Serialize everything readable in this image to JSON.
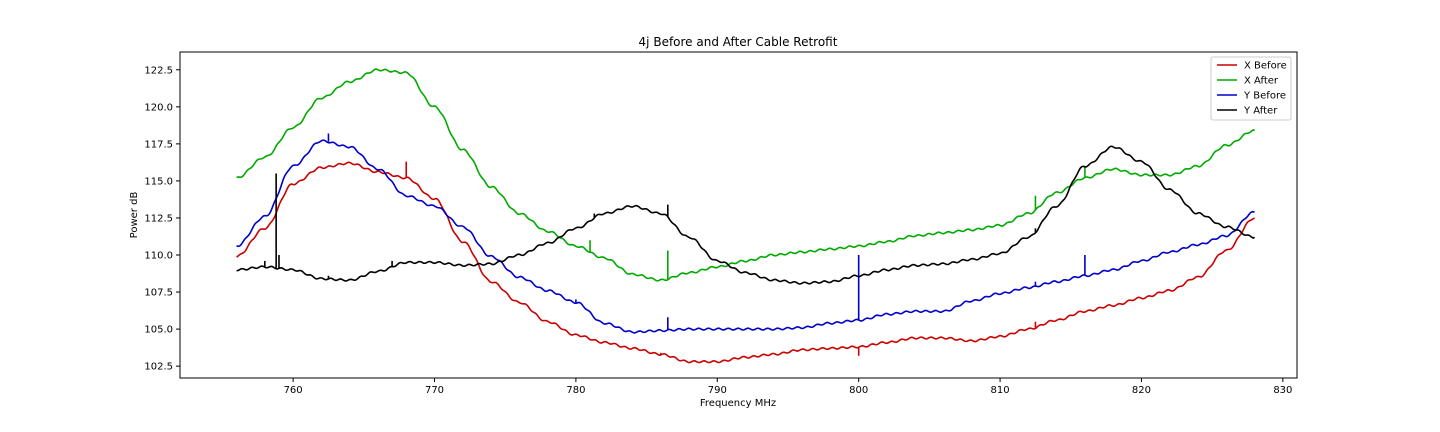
{
  "chart_data": {
    "type": "line",
    "title": "4j Before and After Cable Retrofit",
    "xlabel": "Frequency MHz",
    "ylabel": "Power dB",
    "xlim": [
      752,
      831
    ],
    "ylim": [
      101.7,
      123.7
    ],
    "xticks": [
      760,
      770,
      780,
      790,
      800,
      810,
      820,
      830
    ],
    "yticks": [
      102.5,
      105.0,
      107.5,
      110.0,
      112.5,
      115.0,
      117.5,
      120.0,
      122.5
    ],
    "ytick_labels": [
      "102.5",
      "105.0",
      "107.5",
      "110.0",
      "112.5",
      "115.0",
      "117.5",
      "120.0",
      "122.5"
    ],
    "grid": false,
    "legend_position": "upper right",
    "series": [
      {
        "name": "X Before",
        "color": "#cc0000",
        "points": [
          [
            756,
            109.9
          ],
          [
            758,
            111.8
          ],
          [
            760,
            114.8
          ],
          [
            762,
            115.9
          ],
          [
            764,
            116.2
          ],
          [
            766,
            115.6
          ],
          [
            768,
            115.2
          ],
          [
            770,
            113.8
          ],
          [
            772,
            110.9
          ],
          [
            774,
            108.2
          ],
          [
            776,
            106.8
          ],
          [
            778,
            105.5
          ],
          [
            780,
            104.6
          ],
          [
            782,
            104.1
          ],
          [
            784,
            103.7
          ],
          [
            786,
            103.3
          ],
          [
            788,
            102.8
          ],
          [
            790,
            102.8
          ],
          [
            792,
            103.1
          ],
          [
            794,
            103.3
          ],
          [
            796,
            103.6
          ],
          [
            798,
            103.7
          ],
          [
            800,
            103.8
          ],
          [
            802,
            104.1
          ],
          [
            804,
            104.4
          ],
          [
            806,
            104.4
          ],
          [
            808,
            104.2
          ],
          [
            810,
            104.5
          ],
          [
            812,
            105.0
          ],
          [
            814,
            105.6
          ],
          [
            816,
            106.2
          ],
          [
            818,
            106.6
          ],
          [
            820,
            107.1
          ],
          [
            822,
            107.6
          ],
          [
            824,
            108.5
          ],
          [
            826,
            110.3
          ],
          [
            828,
            112.5
          ]
        ],
        "spikes": [
          [
            768,
            116.3
          ],
          [
            800,
            103.2
          ],
          [
            812.5,
            105.5
          ],
          [
            786,
            103.4
          ]
        ]
      },
      {
        "name": "X After",
        "color": "#00aa00",
        "points": [
          [
            756,
            115.2
          ],
          [
            758,
            116.6
          ],
          [
            760,
            118.6
          ],
          [
            762,
            120.6
          ],
          [
            764,
            121.7
          ],
          [
            766,
            122.5
          ],
          [
            768,
            122.3
          ],
          [
            770,
            120.0
          ],
          [
            772,
            117.1
          ],
          [
            774,
            114.6
          ],
          [
            776,
            112.8
          ],
          [
            778,
            111.6
          ],
          [
            780,
            110.6
          ],
          [
            782,
            109.8
          ],
          [
            784,
            108.7
          ],
          [
            786,
            108.3
          ],
          [
            788,
            108.8
          ],
          [
            790,
            109.2
          ],
          [
            792,
            109.6
          ],
          [
            794,
            110.0
          ],
          [
            796,
            110.2
          ],
          [
            798,
            110.4
          ],
          [
            800,
            110.6
          ],
          [
            802,
            110.9
          ],
          [
            804,
            111.3
          ],
          [
            806,
            111.5
          ],
          [
            808,
            111.7
          ],
          [
            810,
            112.0
          ],
          [
            812,
            112.8
          ],
          [
            814,
            114.2
          ],
          [
            816,
            115.2
          ],
          [
            818,
            115.8
          ],
          [
            820,
            115.4
          ],
          [
            822,
            115.4
          ],
          [
            824,
            116.0
          ],
          [
            826,
            117.4
          ],
          [
            828,
            118.4
          ]
        ],
        "spikes": [
          [
            768,
            122.3
          ],
          [
            786.5,
            110.3
          ],
          [
            812.5,
            114.0
          ],
          [
            816,
            116.0
          ],
          [
            781,
            111.0
          ]
        ]
      },
      {
        "name": "Y Before",
        "color": "#0000cc",
        "points": [
          [
            756,
            110.6
          ],
          [
            758,
            112.6
          ],
          [
            760,
            116.0
          ],
          [
            762,
            117.7
          ],
          [
            764,
            117.3
          ],
          [
            766,
            115.8
          ],
          [
            768,
            114.0
          ],
          [
            770,
            113.3
          ],
          [
            772,
            111.9
          ],
          [
            774,
            109.9
          ],
          [
            776,
            108.5
          ],
          [
            778,
            107.6
          ],
          [
            780,
            106.8
          ],
          [
            782,
            105.4
          ],
          [
            784,
            104.8
          ],
          [
            786,
            104.9
          ],
          [
            788,
            105.0
          ],
          [
            790,
            105.0
          ],
          [
            792,
            105.0
          ],
          [
            794,
            105.0
          ],
          [
            796,
            105.1
          ],
          [
            798,
            105.4
          ],
          [
            800,
            105.6
          ],
          [
            802,
            106.0
          ],
          [
            804,
            106.2
          ],
          [
            806,
            106.2
          ],
          [
            808,
            106.9
          ],
          [
            810,
            107.4
          ],
          [
            812,
            107.8
          ],
          [
            814,
            108.2
          ],
          [
            816,
            108.6
          ],
          [
            818,
            109.0
          ],
          [
            820,
            109.6
          ],
          [
            822,
            110.2
          ],
          [
            824,
            110.7
          ],
          [
            826,
            111.3
          ],
          [
            828,
            112.9
          ]
        ],
        "spikes": [
          [
            762.5,
            118.2
          ],
          [
            780,
            107.0
          ],
          [
            786.5,
            105.8
          ],
          [
            800,
            110.0
          ],
          [
            812.5,
            108.2
          ],
          [
            816,
            110.0
          ]
        ]
      },
      {
        "name": "Y After",
        "color": "#000000",
        "points": [
          [
            756,
            109.0
          ],
          [
            758,
            109.2
          ],
          [
            760,
            109.0
          ],
          [
            762,
            108.4
          ],
          [
            764,
            108.3
          ],
          [
            766,
            108.9
          ],
          [
            768,
            109.5
          ],
          [
            770,
            109.5
          ],
          [
            772,
            109.3
          ],
          [
            774,
            109.4
          ],
          [
            776,
            110.0
          ],
          [
            778,
            110.8
          ],
          [
            780,
            111.8
          ],
          [
            782,
            112.8
          ],
          [
            784,
            113.3
          ],
          [
            786,
            112.8
          ],
          [
            788,
            111.2
          ],
          [
            790,
            109.6
          ],
          [
            792,
            108.8
          ],
          [
            794,
            108.3
          ],
          [
            796,
            108.1
          ],
          [
            798,
            108.2
          ],
          [
            800,
            108.6
          ],
          [
            802,
            109.0
          ],
          [
            804,
            109.3
          ],
          [
            806,
            109.4
          ],
          [
            808,
            109.7
          ],
          [
            810,
            110.1
          ],
          [
            812,
            111.2
          ],
          [
            814,
            113.3
          ],
          [
            816,
            116.0
          ],
          [
            818,
            117.3
          ],
          [
            820,
            116.3
          ],
          [
            822,
            114.4
          ],
          [
            824,
            112.8
          ],
          [
            826,
            111.9
          ],
          [
            828,
            111.2
          ]
        ],
        "spikes": [
          [
            758.8,
            115.5
          ],
          [
            759.0,
            110.0
          ],
          [
            758.0,
            109.6
          ],
          [
            762.5,
            108.6
          ],
          [
            767.0,
            109.6
          ],
          [
            781.3,
            112.8
          ],
          [
            786.5,
            113.4
          ],
          [
            812.5,
            111.8
          ]
        ]
      }
    ]
  }
}
